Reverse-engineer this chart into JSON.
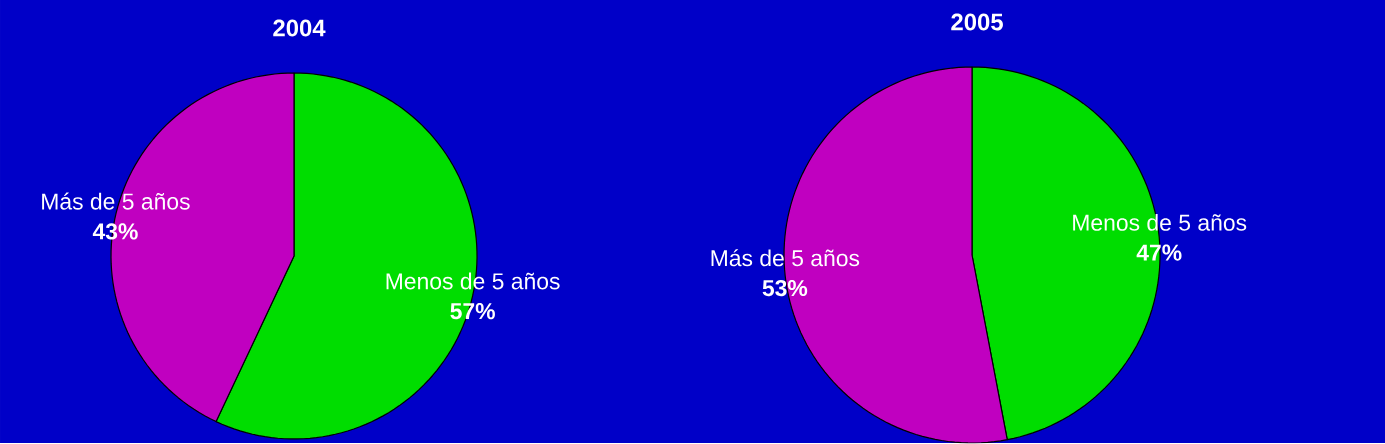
{
  "chart_data": [
    {
      "type": "pie",
      "title": "2004",
      "categories": [
        "Menos de 5 años",
        "Más de 5 años"
      ],
      "values": [
        57,
        43
      ],
      "value_labels": [
        "57%",
        "43%"
      ],
      "colors": [
        "#00dd00",
        "#c000c0"
      ]
    },
    {
      "type": "pie",
      "title": "2005",
      "categories": [
        "Menos de 5 años",
        "Más de 5 años"
      ],
      "values": [
        47,
        53
      ],
      "value_labels": [
        "47%",
        "53%"
      ],
      "colors": [
        "#00dd00",
        "#c000c0"
      ]
    }
  ]
}
